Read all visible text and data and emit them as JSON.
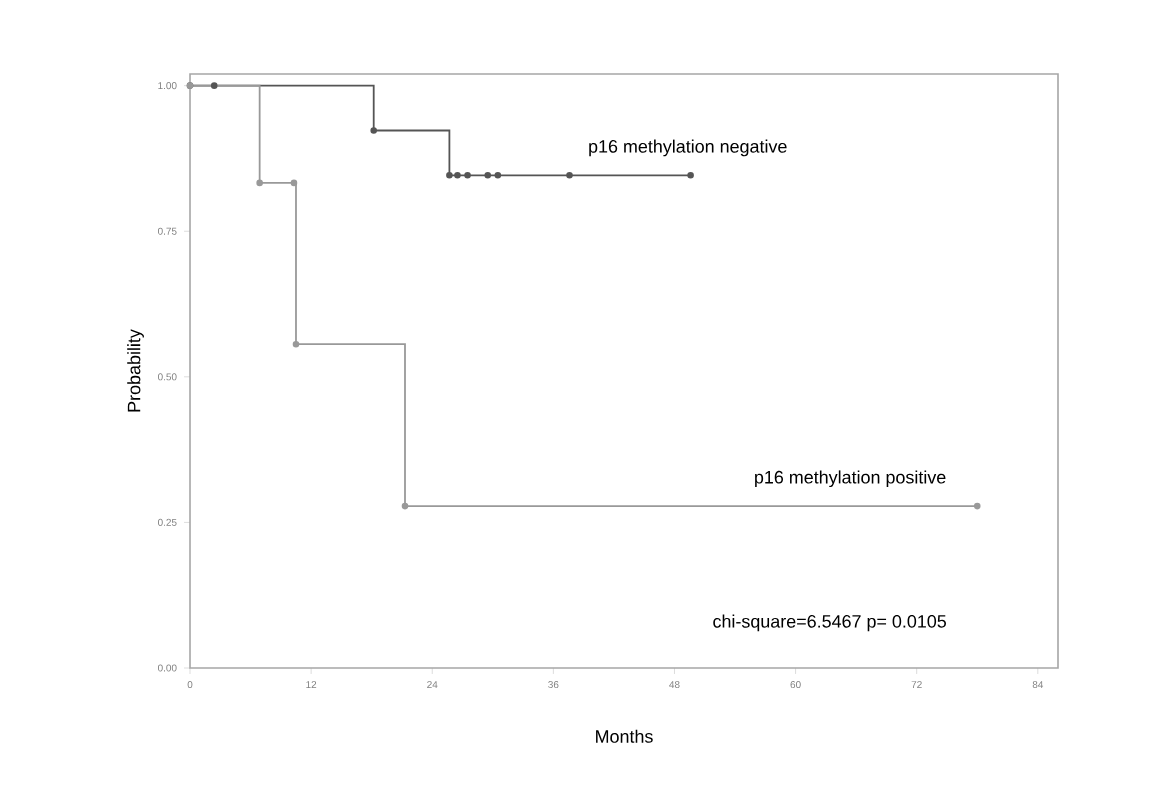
{
  "chart_data": {
    "type": "step",
    "xlabel": "Months",
    "ylabel": "Probability",
    "xlim": [
      0,
      86
    ],
    "ylim": [
      0,
      1.02
    ],
    "xticks": [
      0,
      12,
      24,
      36,
      48,
      60,
      72,
      84
    ],
    "yticks": [
      {
        "value": 0,
        "label": "0.00"
      },
      {
        "value": 0.25,
        "label": "0.25"
      },
      {
        "value": 0.5,
        "label": "0.50"
      },
      {
        "value": 0.75,
        "label": "0.75"
      },
      {
        "value": 1,
        "label": "1.00"
      }
    ],
    "grid": false,
    "marker": "circle",
    "annotations": [
      "chi-square=6.5467    p= 0.0105"
    ],
    "series": [
      {
        "name": "p16 methylation negative",
        "color": "#555555",
        "x": [
          0,
          2.4,
          18.2,
          25.7,
          26.5,
          27.5,
          29.5,
          30.5,
          37.6,
          49.6
        ],
        "values": [
          1,
          1,
          0.923,
          0.846,
          0.846,
          0.846,
          0.846,
          0.846,
          0.846,
          0.846
        ]
      },
      {
        "name": "p16 methylation positive",
        "color": "#999999",
        "x": [
          0,
          6.9,
          10.3,
          10.5,
          21.3,
          78
        ],
        "values": [
          1,
          0.833,
          0.833,
          0.556,
          0.278,
          0.278
        ]
      }
    ]
  }
}
